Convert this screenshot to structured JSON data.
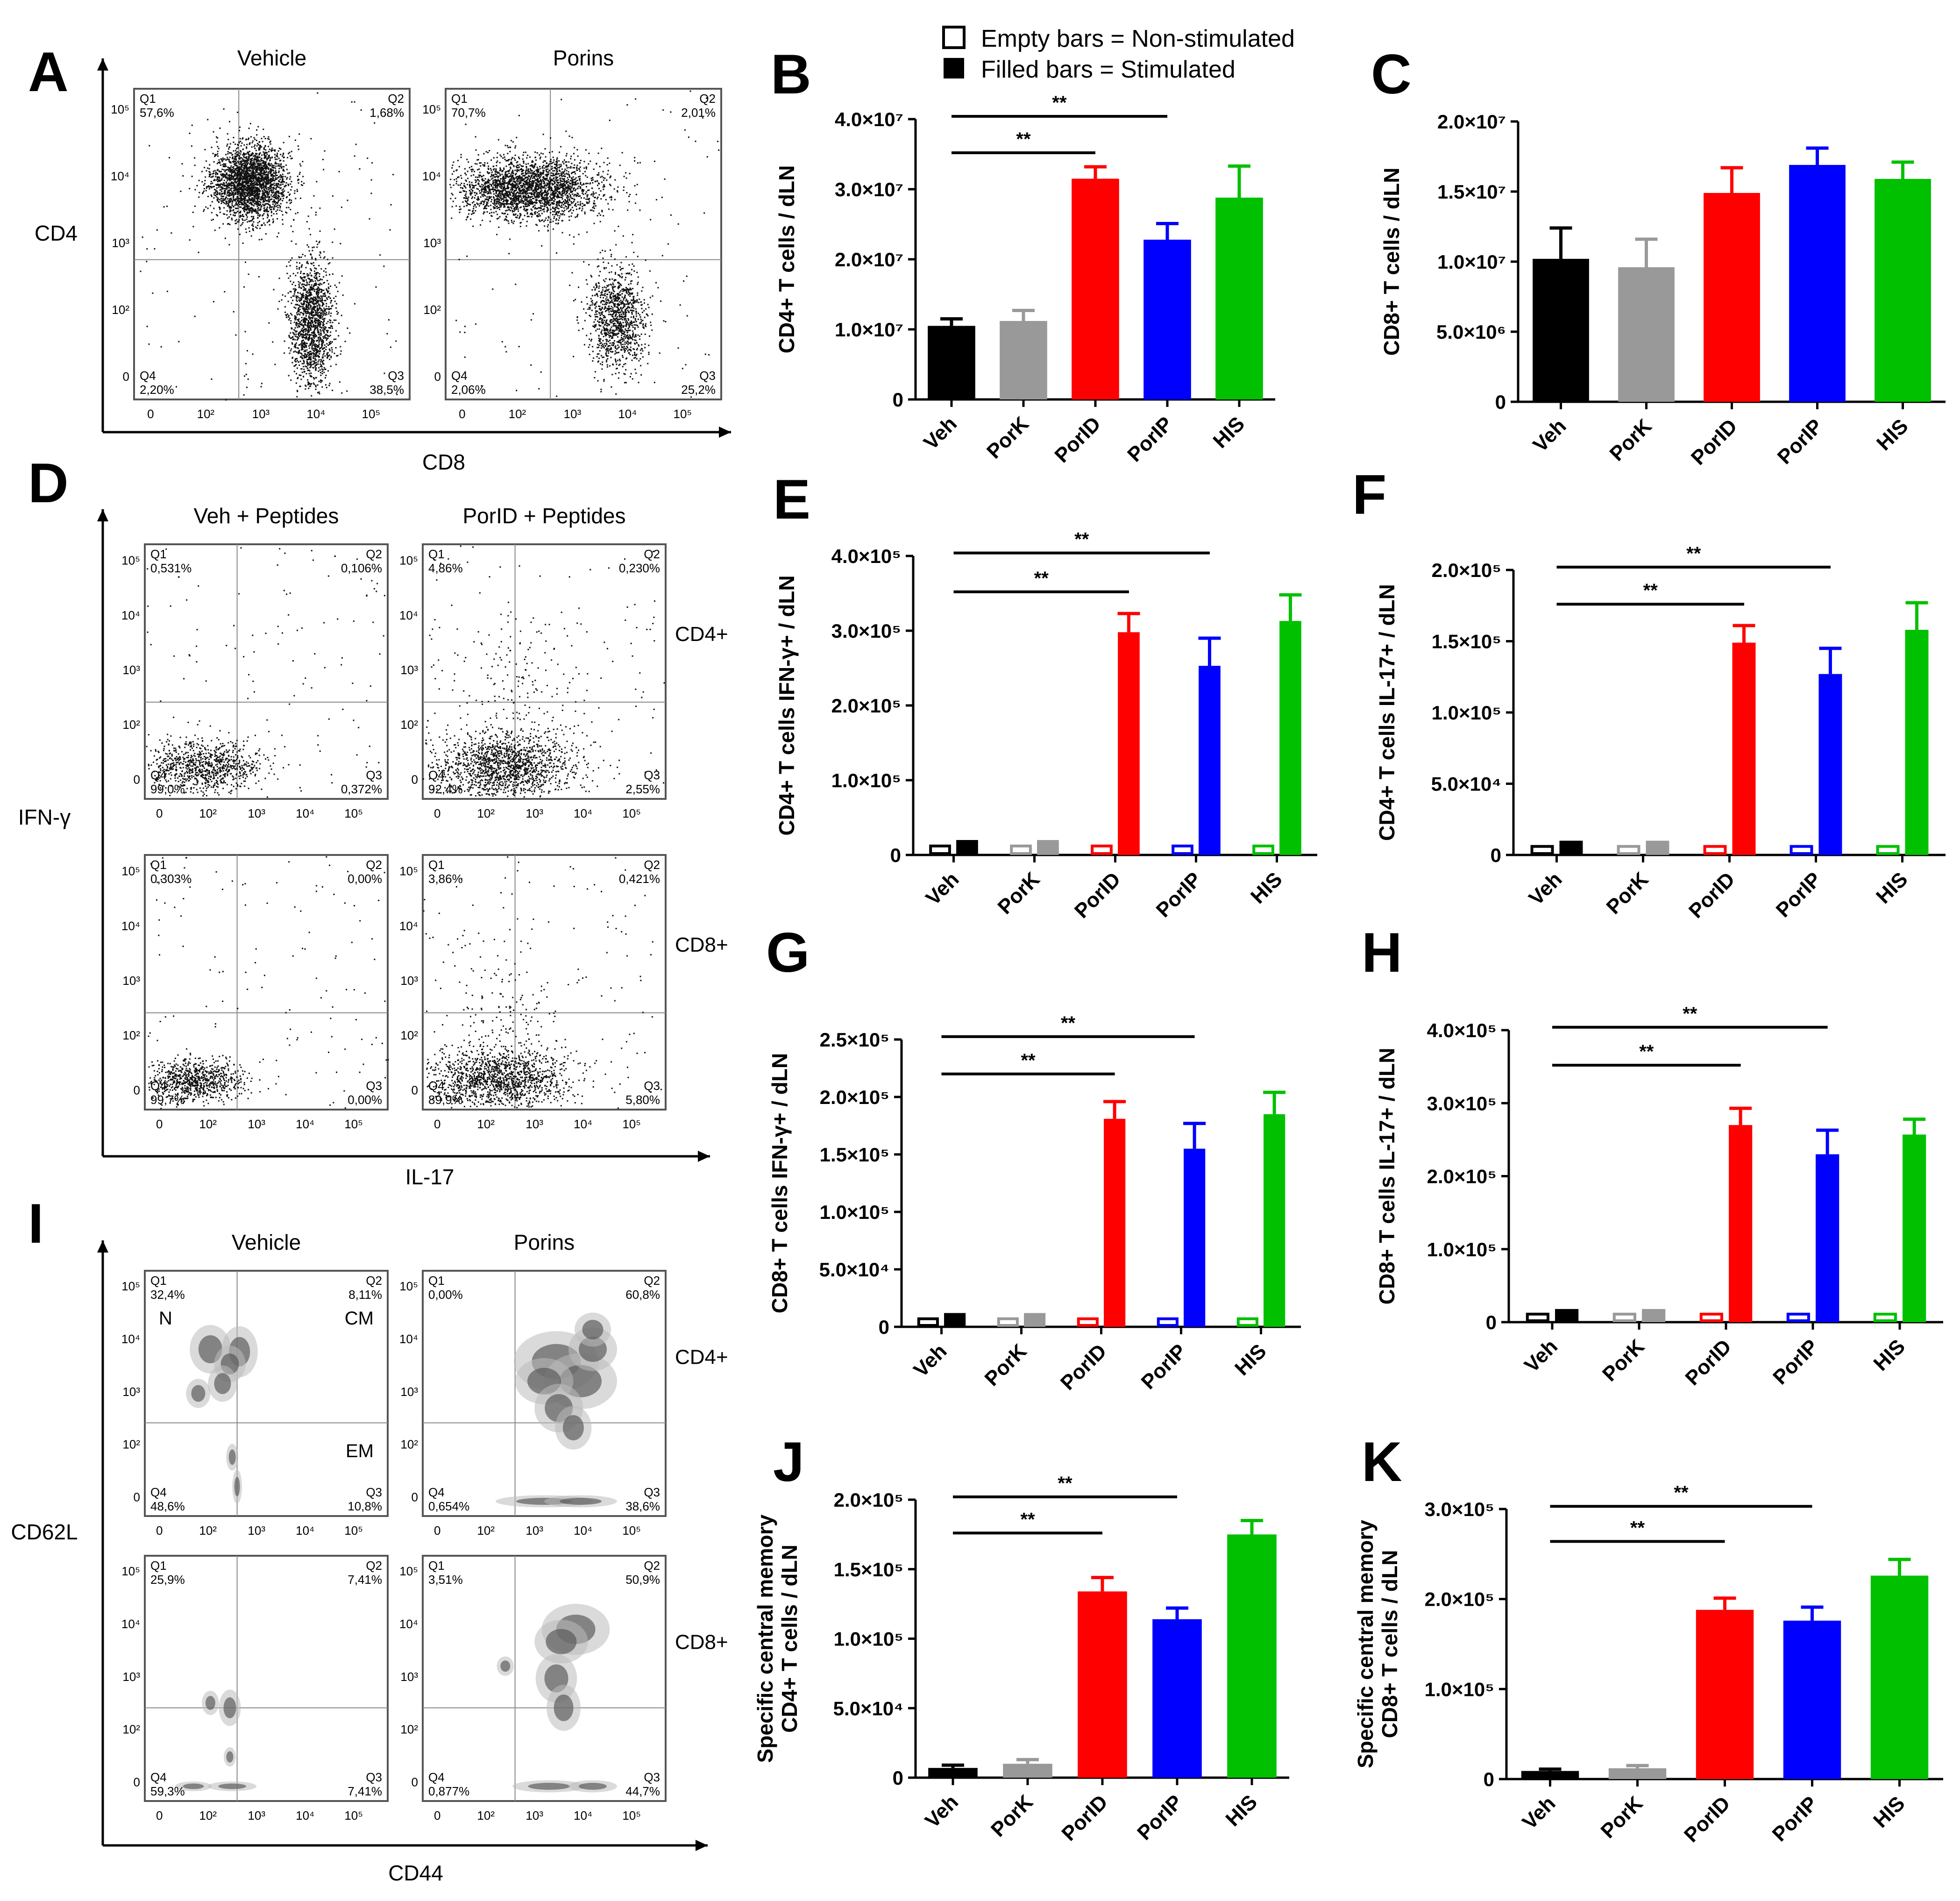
{
  "legend": {
    "empty": "Empty bars = Non-stimulated",
    "filled": "Filled bars = Stimulated"
  },
  "categories": [
    "Veh",
    "PorK",
    "PorID",
    "PorIP",
    "HIS"
  ],
  "colors": {
    "Veh": "#000000",
    "PorK": "#999999",
    "PorID": "#ff0000",
    "PorIP": "#0000ff",
    "HIS": "#00c000"
  },
  "significance_label": "**",
  "scatter_panels": [
    {
      "letter": "A",
      "x_label": "CD8",
      "y_label": "CD4",
      "plots": [
        {
          "title": "Vehicle",
          "row_label": "",
          "quadrants": {
            "Q1": "57,6%",
            "Q2": "1,68%",
            "Q3": "38,5%",
            "Q4": "2,20%"
          }
        },
        {
          "title": "Porins",
          "row_label": "",
          "quadrants": {
            "Q1": "70,7%",
            "Q2": "2,01%",
            "Q3": "25,2%",
            "Q4": "2,06%"
          }
        }
      ]
    },
    {
      "letter": "D",
      "x_label": "IL-17",
      "y_label": "IFN-γ",
      "plots": [
        {
          "title": "Veh + Peptides",
          "row_label": "",
          "quadrants": {
            "Q1": "0,531%",
            "Q2": "0,106%",
            "Q3": "0,372%",
            "Q4": "99,0%"
          }
        },
        {
          "title": "PorID + Peptides",
          "row_label": "CD4+",
          "quadrants": {
            "Q1": "4,86%",
            "Q2": "0,230%",
            "Q3": "2,55%",
            "Q4": "92,4%"
          }
        },
        {
          "title": "",
          "row_label": "",
          "quadrants": {
            "Q1": "0,303%",
            "Q2": "0,00%",
            "Q3": "0,00%",
            "Q4": "99,7%"
          }
        },
        {
          "title": "",
          "row_label": "CD8+",
          "quadrants": {
            "Q1": "3,86%",
            "Q2": "0,421%",
            "Q3": "5,80%",
            "Q4": "89,9%"
          }
        }
      ]
    },
    {
      "letter": "I",
      "x_label": "CD44",
      "y_label": "CD62L",
      "subset_labels": {
        "N": "N",
        "CM": "CM",
        "EM": "EM"
      },
      "plots": [
        {
          "title": "Vehicle",
          "row_label": "",
          "quadrants": {
            "Q1": "32,4%",
            "Q2": "8,11%",
            "Q3": "10,8%",
            "Q4": "48,6%"
          }
        },
        {
          "title": "Porins",
          "row_label": "CD4+",
          "quadrants": {
            "Q1": "0,00%",
            "Q2": "60,8%",
            "Q3": "38,6%",
            "Q4": "0,654%"
          }
        },
        {
          "title": "",
          "row_label": "",
          "quadrants": {
            "Q1": "25,9%",
            "Q2": "7,41%",
            "Q3": "7,41%",
            "Q4": "59,3%"
          }
        },
        {
          "title": "",
          "row_label": "CD8+",
          "quadrants": {
            "Q1": "3,51%",
            "Q2": "50,9%",
            "Q3": "44,7%",
            "Q4": "0,877%"
          }
        }
      ]
    }
  ],
  "chart_data": [
    {
      "letter": "B",
      "type": "bar",
      "paired": false,
      "title": "",
      "ylabel": [
        "CD4+ T cells / dLN"
      ],
      "categories": [
        "Veh",
        "PorK",
        "PorID",
        "PorIP",
        "HIS"
      ],
      "ylim": [
        0,
        40000000
      ],
      "ytick_labels": [
        "0",
        "1.0×10⁷",
        "2.0×10⁷",
        "3.0×10⁷",
        "4.0×10⁷"
      ],
      "values": [
        10500000,
        11200000,
        31500000,
        22800000,
        28800000
      ],
      "errors": [
        1000000,
        1500000,
        1700000,
        2300000,
        4500000
      ],
      "significance": [
        {
          "from": "Veh",
          "to": "PorID",
          "label": "**"
        },
        {
          "from": "Veh",
          "to": "PorIP",
          "label": "**"
        }
      ]
    },
    {
      "letter": "C",
      "type": "bar",
      "paired": false,
      "title": "",
      "ylabel": [
        "CD8+ T cells / dLN"
      ],
      "categories": [
        "Veh",
        "PorK",
        "PorID",
        "PorIP",
        "HIS"
      ],
      "ylim": [
        0,
        20000000
      ],
      "ytick_labels": [
        "0",
        "5.0×10⁶",
        "1.0×10⁷",
        "1.5×10⁷",
        "2.0×10⁷"
      ],
      "values": [
        10200000,
        9600000,
        14900000,
        16900000,
        15900000
      ],
      "errors": [
        2200000,
        2000000,
        1800000,
        1200000,
        1200000
      ],
      "significance": []
    },
    {
      "letter": "E",
      "type": "bar",
      "paired": true,
      "title": "",
      "ylabel": [
        "CD4+ T cells IFN-γ+ / dLN"
      ],
      "categories": [
        "Veh",
        "PorK",
        "PorID",
        "PorIP",
        "HIS"
      ],
      "ylim": [
        0,
        400000
      ],
      "ytick_labels": [
        "0",
        "1.0×10⁵",
        "2.0×10⁵",
        "3.0×10⁵",
        "4.0×10⁵"
      ],
      "series": [
        {
          "name": "Non-stimulated",
          "values": [
            12000,
            12000,
            12000,
            12000,
            12000
          ],
          "errors": [
            0,
            0,
            0,
            0,
            0
          ]
        },
        {
          "name": "Stimulated",
          "values": [
            20000,
            20000,
            298000,
            253000,
            313000
          ],
          "errors": [
            0,
            0,
            25000,
            37000,
            35000
          ]
        }
      ],
      "significance": [
        {
          "from": "Veh",
          "to": "PorID",
          "label": "**"
        },
        {
          "from": "Veh",
          "to": "PorIP",
          "label": "**"
        }
      ]
    },
    {
      "letter": "F",
      "type": "bar",
      "paired": true,
      "title": "",
      "ylabel": [
        "CD4+ T cells IL-17+ / dLN"
      ],
      "categories": [
        "Veh",
        "PorK",
        "PorID",
        "PorIP",
        "HIS"
      ],
      "ylim": [
        0,
        200000
      ],
      "ytick_labels": [
        "0",
        "5.0×10⁴",
        "1.0×10⁵",
        "1.5×10⁵",
        "2.0×10⁵"
      ],
      "series": [
        {
          "name": "Non-stimulated",
          "values": [
            6000,
            6000,
            6000,
            6000,
            6000
          ],
          "errors": [
            0,
            0,
            0,
            0,
            0
          ]
        },
        {
          "name": "Stimulated",
          "values": [
            10000,
            10000,
            149000,
            127000,
            158000
          ],
          "errors": [
            0,
            0,
            12000,
            18000,
            19000
          ]
        }
      ],
      "significance": [
        {
          "from": "Veh",
          "to": "PorID",
          "label": "**"
        },
        {
          "from": "Veh",
          "to": "PorIP",
          "label": "**"
        }
      ]
    },
    {
      "letter": "G",
      "type": "bar",
      "paired": true,
      "title": "",
      "ylabel": [
        "CD8+ T cells IFN-γ+ / dLN"
      ],
      "categories": [
        "Veh",
        "PorK",
        "PorID",
        "PorIP",
        "HIS"
      ],
      "ylim": [
        0,
        250000
      ],
      "ytick_labels": [
        "0",
        "5.0×10⁴",
        "1.0×10⁵",
        "1.5×10⁵",
        "2.0×10⁵",
        "2.5×10⁵"
      ],
      "series": [
        {
          "name": "Non-stimulated",
          "values": [
            7000,
            7000,
            7000,
            7000,
            7000
          ],
          "errors": [
            0,
            0,
            0,
            0,
            0
          ]
        },
        {
          "name": "Stimulated",
          "values": [
            12000,
            12000,
            181000,
            155000,
            185000
          ],
          "errors": [
            0,
            0,
            15000,
            22000,
            19000
          ]
        }
      ],
      "significance": [
        {
          "from": "Veh",
          "to": "PorID",
          "label": "**"
        },
        {
          "from": "Veh",
          "to": "PorIP",
          "label": "**"
        }
      ]
    },
    {
      "letter": "H",
      "type": "bar",
      "paired": true,
      "title": "",
      "ylabel": [
        "CD8+ T cells IL-17+ / dLN"
      ],
      "categories": [
        "Veh",
        "PorK",
        "PorID",
        "PorIP",
        "HIS"
      ],
      "ylim": [
        0,
        400000
      ],
      "ytick_labels": [
        "0",
        "1.0×10⁵",
        "2.0×10⁵",
        "3.0×10⁵",
        "4.0×10⁵"
      ],
      "series": [
        {
          "name": "Non-stimulated",
          "values": [
            11000,
            11000,
            11000,
            11000,
            11000
          ],
          "errors": [
            0,
            0,
            0,
            0,
            0
          ]
        },
        {
          "name": "Stimulated",
          "values": [
            18000,
            18000,
            270000,
            230000,
            257000
          ],
          "errors": [
            0,
            0,
            23000,
            33000,
            21000
          ]
        }
      ],
      "significance": [
        {
          "from": "Veh",
          "to": "PorID",
          "label": "**"
        },
        {
          "from": "Veh",
          "to": "PorIP",
          "label": "**"
        }
      ]
    },
    {
      "letter": "J",
      "type": "bar",
      "paired": false,
      "title": "",
      "ylabel": [
        "Specific central memory",
        "CD4+ T cells / dLN"
      ],
      "categories": [
        "Veh",
        "PorK",
        "PorID",
        "PorIP",
        "HIS"
      ],
      "ylim": [
        0,
        200000
      ],
      "ytick_labels": [
        "0",
        "5.0×10⁴",
        "1.0×10⁵",
        "1.5×10⁵",
        "2.0×10⁵"
      ],
      "values": [
        7000,
        10000,
        134000,
        114000,
        175000
      ],
      "errors": [
        2000,
        3000,
        10000,
        8000,
        10000
      ],
      "significance": [
        {
          "from": "Veh",
          "to": "PorID",
          "label": "**"
        },
        {
          "from": "Veh",
          "to": "PorIP",
          "label": "**"
        }
      ]
    },
    {
      "letter": "K",
      "type": "bar",
      "paired": false,
      "title": "",
      "ylabel": [
        "Specific central memory",
        "CD8+ T cells / dLN"
      ],
      "categories": [
        "Veh",
        "PorK",
        "PorID",
        "PorIP",
        "HIS"
      ],
      "ylim": [
        0,
        300000
      ],
      "ytick_labels": [
        "0",
        "1.0×10⁵",
        "2.0×10⁵",
        "3.0×10⁵"
      ],
      "values": [
        9000,
        12000,
        188000,
        176000,
        226000
      ],
      "errors": [
        2000,
        3000,
        13000,
        15000,
        18000
      ],
      "significance": [
        {
          "from": "Veh",
          "to": "PorID",
          "label": "**"
        },
        {
          "from": "Veh",
          "to": "PorIP",
          "label": "**"
        }
      ]
    }
  ]
}
